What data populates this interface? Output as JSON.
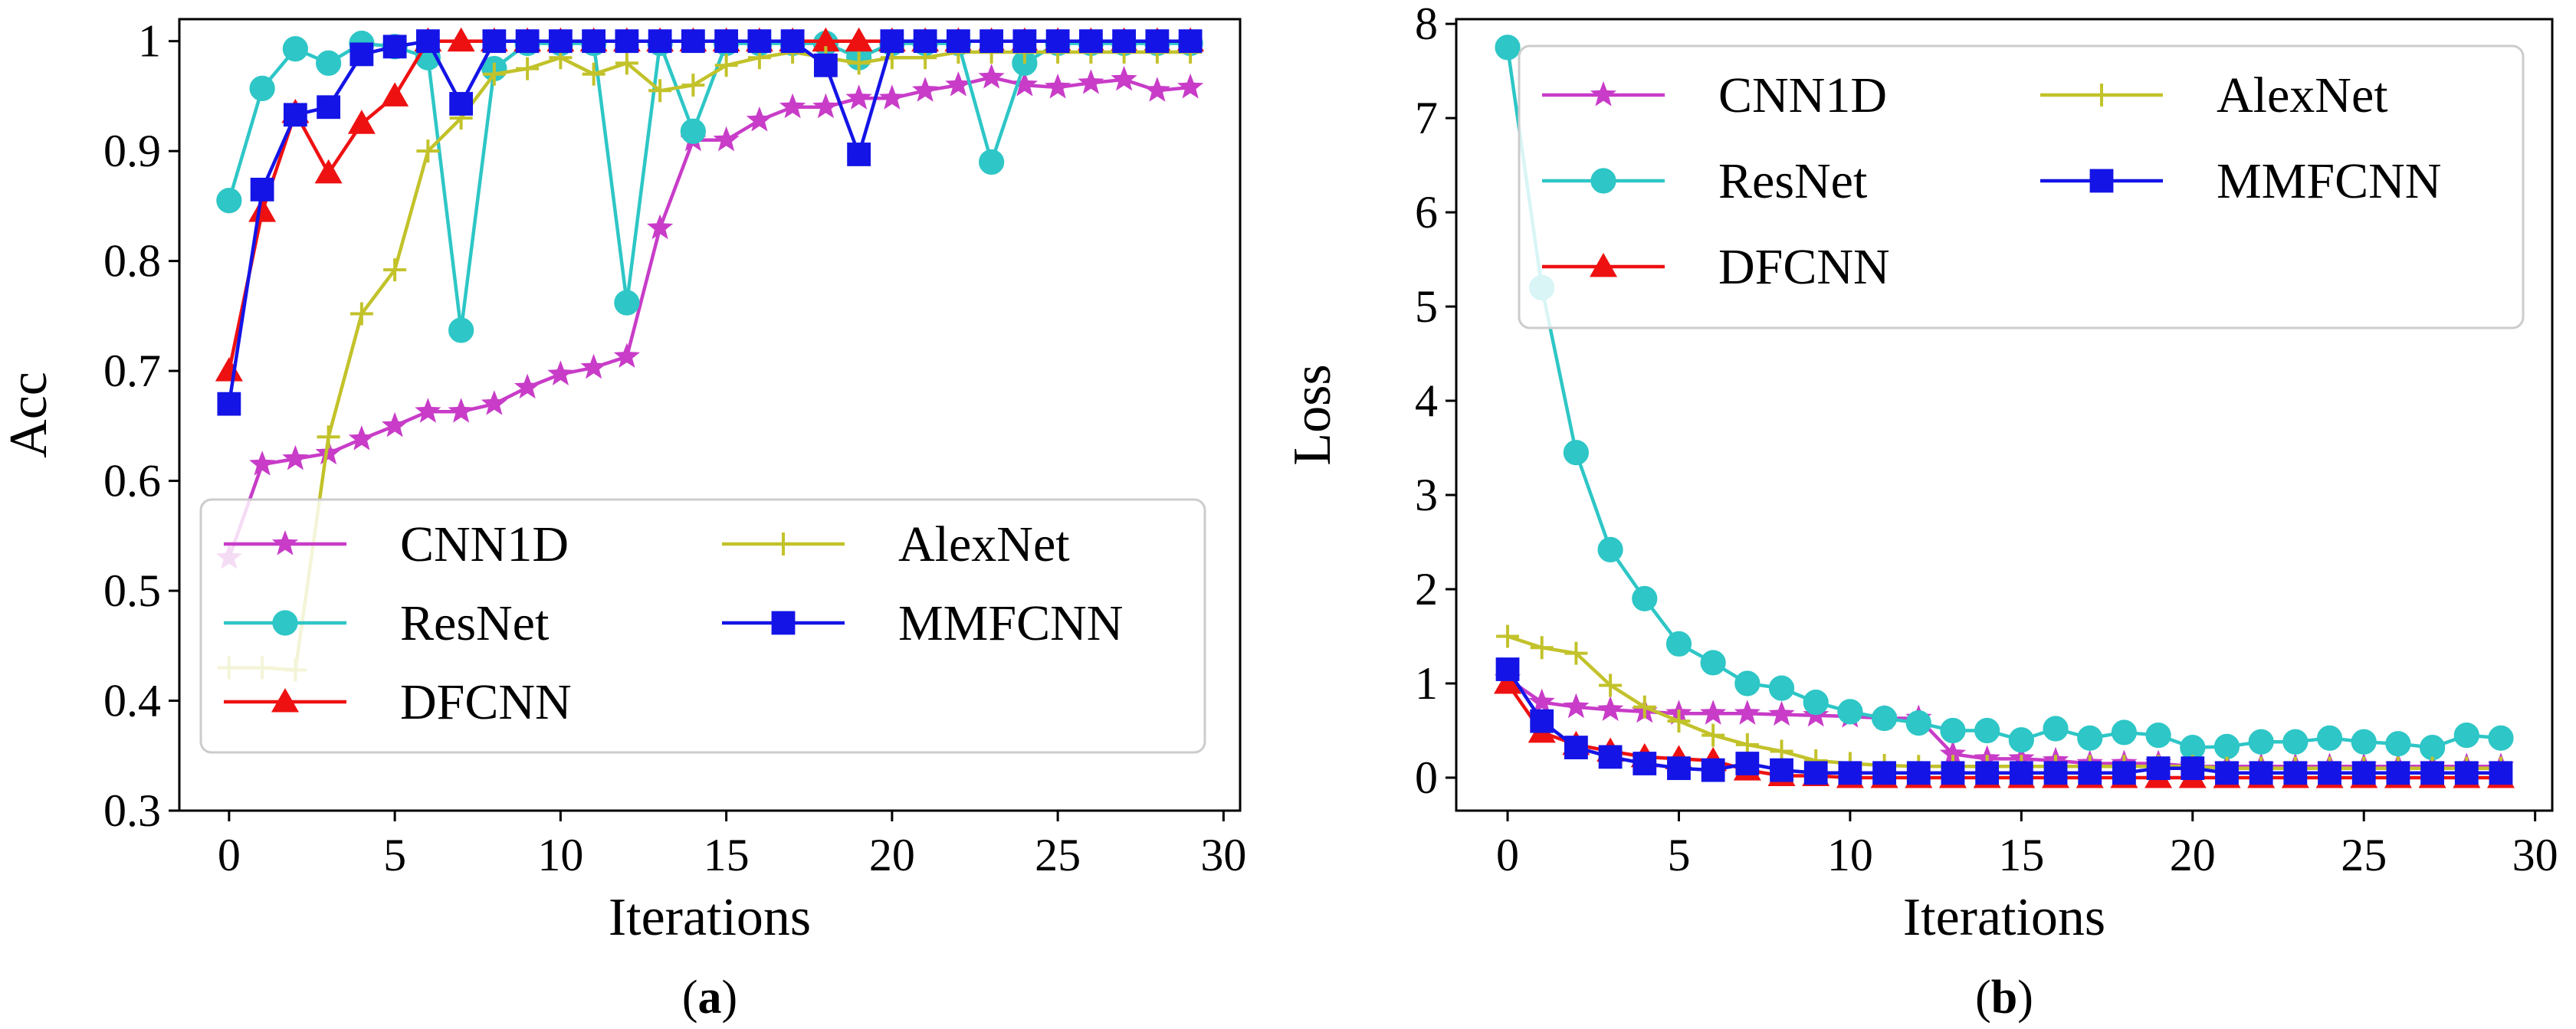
{
  "chart_data": [
    {
      "type": "line",
      "panel": "a",
      "caption_label": "a",
      "caption_open": "(",
      "caption_close": ")",
      "xlabel": "Iterations",
      "ylabel": "Acc",
      "xlim": [
        -1.5,
        30.5
      ],
      "ylim": [
        0.3,
        1.02
      ],
      "xticks": [
        0,
        5,
        10,
        15,
        20,
        25,
        30
      ],
      "yticks": [
        0.3,
        0.4,
        0.5,
        0.6,
        0.7,
        0.8,
        0.9,
        1
      ],
      "ytick_labels": [
        "0.3",
        "0.4",
        "0.5",
        "0.6",
        "0.7",
        "0.8",
        "0.9",
        "1"
      ],
      "legend_position": "bottom-left",
      "x": [
        0,
        1,
        2,
        3,
        4,
        5,
        6,
        7,
        8,
        9,
        10,
        11,
        12,
        13,
        14,
        15,
        16,
        17,
        18,
        19,
        20,
        21,
        22,
        23,
        24,
        25,
        26,
        27,
        28,
        29
      ],
      "series": [
        {
          "name": "CNN1D",
          "color": "#c83cc8",
          "marker": "star",
          "values": [
            0.53,
            0.615,
            0.62,
            0.625,
            0.638,
            0.65,
            0.663,
            0.663,
            0.67,
            0.685,
            0.697,
            0.703,
            0.713,
            0.83,
            0.91,
            0.91,
            0.928,
            0.94,
            0.94,
            0.948,
            0.948,
            0.955,
            0.96,
            0.967,
            0.96,
            0.958,
            0.962,
            0.965,
            0.955,
            0.958
          ]
        },
        {
          "name": "ResNet",
          "color": "#2ec6c6",
          "marker": "circle",
          "values": [
            0.855,
            0.957,
            0.993,
            0.98,
            0.998,
            0.995,
            0.985,
            0.737,
            0.975,
            0.998,
            0.998,
            0.998,
            0.762,
            0.998,
            0.918,
            0.998,
            0.998,
            0.998,
            0.998,
            0.985,
            0.998,
            0.998,
            0.998,
            0.89,
            0.98,
            0.998,
            0.998,
            0.998,
            0.998,
            0.998
          ]
        },
        {
          "name": "DFCNN",
          "color": "#ee1111",
          "marker": "triangle",
          "values": [
            0.7,
            0.845,
            0.935,
            0.88,
            0.925,
            0.95,
            1,
            1,
            1,
            1,
            1,
            1,
            1,
            1,
            1,
            1,
            1,
            1,
            1,
            1,
            1,
            1,
            1,
            1,
            1,
            1,
            1,
            1,
            1,
            1
          ]
        },
        {
          "name": "AlexNet",
          "color": "#c2c22b",
          "marker": "plus",
          "values": [
            0.43,
            0.43,
            0.428,
            0.64,
            0.752,
            0.792,
            0.9,
            0.93,
            0.97,
            0.975,
            0.985,
            0.97,
            0.98,
            0.955,
            0.96,
            0.978,
            0.985,
            0.99,
            0.985,
            0.98,
            0.985,
            0.985,
            0.99,
            0.99,
            0.99,
            0.99,
            0.99,
            0.99,
            0.99,
            0.99
          ]
        },
        {
          "name": "MMFCNN",
          "color": "#1414e6",
          "marker": "square",
          "values": [
            0.67,
            0.865,
            0.933,
            0.94,
            0.988,
            0.995,
            1,
            0.943,
            1,
            1,
            1,
            1,
            1,
            1,
            1,
            1,
            1,
            1,
            0.978,
            0.897,
            1,
            1,
            1,
            1,
            1,
            1,
            1,
            1,
            1,
            1
          ]
        }
      ]
    },
    {
      "type": "line",
      "panel": "b",
      "caption_label": "b",
      "caption_open": "(",
      "caption_close": ")",
      "xlabel": "Iterations",
      "ylabel": "Loss",
      "xlim": [
        -1.5,
        30.5
      ],
      "ylim": [
        -0.35,
        8.05
      ],
      "xticks": [
        0,
        5,
        10,
        15,
        20,
        25,
        30
      ],
      "yticks": [
        0,
        1,
        2,
        3,
        4,
        5,
        6,
        7,
        8
      ],
      "ytick_labels": [
        "0",
        "1",
        "2",
        "3",
        "4",
        "5",
        "6",
        "7",
        "8"
      ],
      "legend_position": "top",
      "x": [
        0,
        1,
        2,
        3,
        4,
        5,
        6,
        7,
        8,
        9,
        10,
        11,
        12,
        13,
        14,
        15,
        16,
        17,
        18,
        19,
        20,
        21,
        22,
        23,
        24,
        25,
        26,
        27,
        28,
        29
      ],
      "series": [
        {
          "name": "CNN1D",
          "color": "#c83cc8",
          "marker": "star",
          "values": [
            1.05,
            0.8,
            0.75,
            0.72,
            0.7,
            0.68,
            0.68,
            0.68,
            0.67,
            0.66,
            0.65,
            0.63,
            0.63,
            0.25,
            0.2,
            0.2,
            0.18,
            0.15,
            0.15,
            0.15,
            0.12,
            0.12,
            0.12,
            0.12,
            0.12,
            0.12,
            0.12,
            0.12,
            0.12,
            0.12
          ]
        },
        {
          "name": "ResNet",
          "color": "#2ec6c6",
          "marker": "circle",
          "values": [
            7.75,
            5.2,
            3.45,
            2.42,
            1.9,
            1.42,
            1.22,
            1.0,
            0.95,
            0.8,
            0.7,
            0.63,
            0.58,
            0.5,
            0.5,
            0.4,
            0.52,
            0.42,
            0.48,
            0.45,
            0.32,
            0.33,
            0.38,
            0.38,
            0.42,
            0.38,
            0.36,
            0.32,
            0.45,
            0.42
          ]
        },
        {
          "name": "DFCNN",
          "color": "#ee1111",
          "marker": "triangle",
          "values": [
            1.0,
            0.48,
            0.35,
            0.28,
            0.22,
            0.2,
            0.18,
            0.08,
            0.02,
            0.02,
            0.0,
            0.0,
            0.0,
            0.0,
            0.0,
            0.0,
            0.0,
            0.0,
            0.0,
            0.0,
            0.0,
            0.0,
            0.0,
            0.0,
            0.0,
            0.0,
            0.0,
            0.0,
            0.0,
            0.0
          ]
        },
        {
          "name": "AlexNet",
          "color": "#c2c22b",
          "marker": "plus",
          "values": [
            1.5,
            1.38,
            1.32,
            0.98,
            0.75,
            0.6,
            0.45,
            0.35,
            0.28,
            0.18,
            0.15,
            0.13,
            0.12,
            0.12,
            0.12,
            0.12,
            0.12,
            0.12,
            0.12,
            0.12,
            0.12,
            0.1,
            0.1,
            0.1,
            0.1,
            0.1,
            0.1,
            0.1,
            0.1,
            0.1
          ]
        },
        {
          "name": "MMFCNN",
          "color": "#1414e6",
          "marker": "square",
          "values": [
            1.15,
            0.6,
            0.32,
            0.22,
            0.15,
            0.1,
            0.08,
            0.15,
            0.08,
            0.05,
            0.05,
            0.05,
            0.05,
            0.05,
            0.05,
            0.05,
            0.05,
            0.05,
            0.05,
            0.1,
            0.1,
            0.05,
            0.05,
            0.05,
            0.05,
            0.05,
            0.05,
            0.05,
            0.05,
            0.05
          ]
        }
      ]
    }
  ]
}
